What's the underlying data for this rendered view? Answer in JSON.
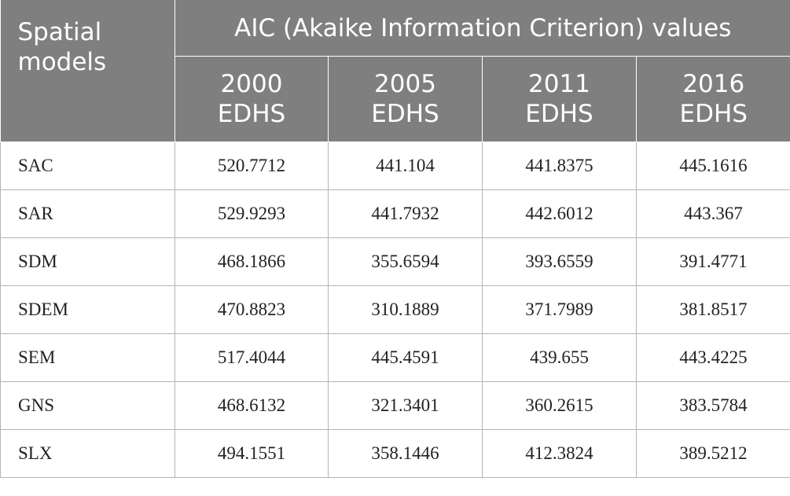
{
  "table": {
    "stub_header": [
      "Spatial",
      "models"
    ],
    "group_header": "AIC (Akaike Information Criterion) values",
    "columns": [
      [
        "2000",
        "EDHS"
      ],
      [
        "2005",
        "EDHS"
      ],
      [
        "2011",
        "EDHS"
      ],
      [
        "2016",
        "EDHS"
      ]
    ],
    "rows": [
      {
        "model": "SAC",
        "values": [
          "520.7712",
          "441.104",
          "441.8375",
          "445.1616"
        ]
      },
      {
        "model": "SAR",
        "values": [
          "529.9293",
          "441.7932",
          "442.6012",
          "443.367"
        ]
      },
      {
        "model": "SDM",
        "values": [
          "468.1866",
          "355.6594",
          "393.6559",
          "391.4771"
        ]
      },
      {
        "model": "SDEM",
        "values": [
          "470.8823",
          "310.1889",
          "371.7989",
          "381.8517"
        ]
      },
      {
        "model": "SEM",
        "values": [
          "517.4044",
          "445.4591",
          "439.655",
          "443.4225"
        ]
      },
      {
        "model": "GNS",
        "values": [
          "468.6132",
          "321.3401",
          "360.2615",
          "383.5784"
        ]
      },
      {
        "model": "SLX",
        "values": [
          "494.1551",
          "358.1446",
          "412.3824",
          "389.5212"
        ]
      }
    ]
  }
}
